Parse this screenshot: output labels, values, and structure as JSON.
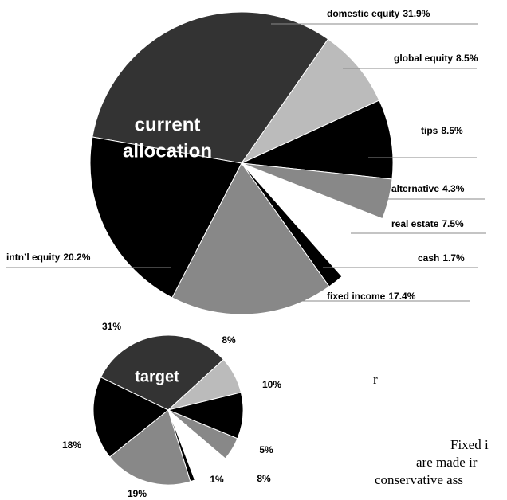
{
  "chart_data": [
    {
      "type": "pie",
      "title": [
        "current",
        "allocation"
      ],
      "categories": [
        "domestic equity",
        "global equity",
        "tips",
        "alternative",
        "real estate",
        "cash",
        "fixed income",
        "intn’l equity"
      ],
      "values": [
        31.9,
        8.5,
        8.5,
        4.3,
        7.5,
        1.7,
        17.4,
        20.2
      ],
      "value_labels": [
        "31.9%",
        "8.5%",
        "8.5%",
        "4.3%",
        "7.5%",
        "1.7%",
        "17.4%",
        "20.2%"
      ],
      "colors": [
        "#333333",
        "#bbbbbb",
        "#000000",
        "#888888",
        "#ffffff",
        "#000000",
        "#888888",
        "#000000"
      ]
    },
    {
      "type": "pie",
      "title": [
        "target"
      ],
      "values": [
        31,
        8,
        10,
        5,
        8,
        1,
        19,
        18
      ],
      "value_labels": [
        "31%",
        "8%",
        "10%",
        "5%",
        "8%",
        "1%",
        "19%",
        "18%"
      ],
      "colors": [
        "#333333",
        "#bbbbbb",
        "#000000",
        "#888888",
        "#ffffff",
        "#000000",
        "#888888",
        "#000000"
      ]
    }
  ],
  "text_fragments": [
    "r",
    "Fixed i",
    "are made ir",
    "conservative ass"
  ]
}
